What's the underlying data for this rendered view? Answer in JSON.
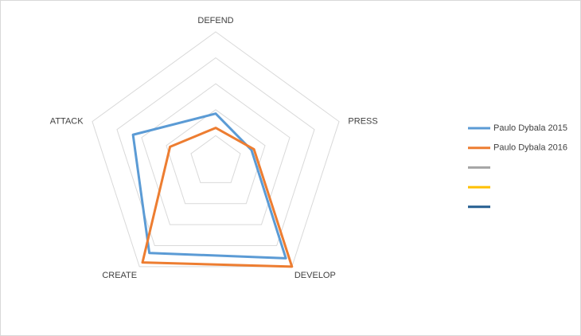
{
  "chart_data": {
    "type": "radar",
    "categories": [
      "DEFEND",
      "PRESS",
      "DEVELOP",
      "CREATE",
      "ATTACK"
    ],
    "series": [
      {
        "name": "Paulo Dybala 2015",
        "color": "#5b9bd5",
        "values": [
          37,
          29,
          92,
          87,
          67
        ]
      },
      {
        "name": "Paulo Dybala 2016",
        "color": "#ed7d31",
        "values": [
          26,
          31,
          100,
          96,
          37
        ]
      },
      {
        "name": null,
        "color": "#a5a5a5",
        "values": [
          null,
          null,
          null,
          null,
          null
        ]
      },
      {
        "name": null,
        "color": "#ffc000",
        "values": [
          null,
          null,
          null,
          null,
          null
        ]
      },
      {
        "name": null,
        "color": "#255e91",
        "values": [
          null,
          null,
          null,
          null,
          null
        ]
      }
    ],
    "ylim": [
      0,
      100
    ],
    "yticks": [
      0,
      20,
      40,
      60,
      80,
      100
    ],
    "grid": true,
    "legend": "right"
  }
}
